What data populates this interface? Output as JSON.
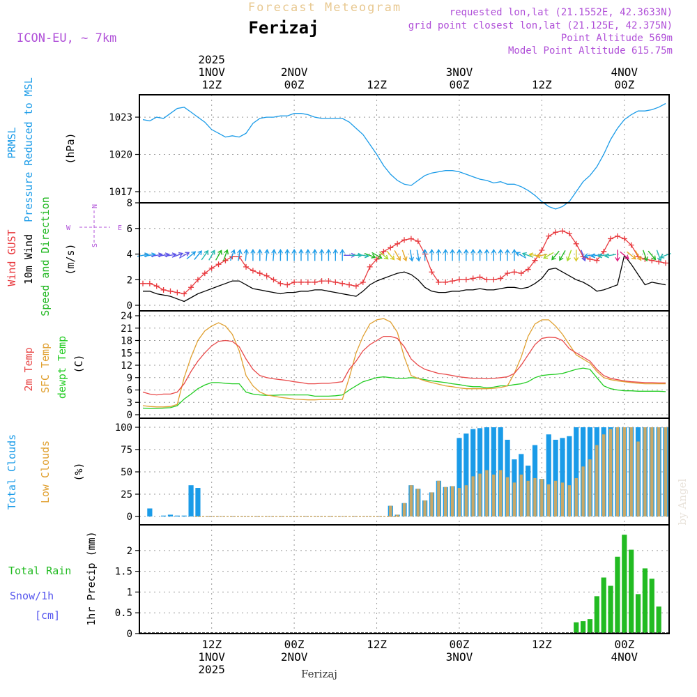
{
  "header": {
    "title": "Forecast Meteogram",
    "location": "Ferizaj",
    "model": "ICON-EU, ~ 7km",
    "requested": "requested lon,lat (21.1552E, 42.3633N)",
    "grid_point": "grid point closest lon,lat (21.125E, 42.375N)",
    "point_altitude": "Point Altitude 569m",
    "model_altitude": "Model Point Altitude 615.75m"
  },
  "footer": {
    "location": "Ferizaj",
    "credit": "by Angel"
  },
  "colors": {
    "pressure": "#1a9be8",
    "gust": "#e8383d",
    "wind": "#000000",
    "speed_dir": "#22b822",
    "temp2m": "#e84848",
    "sfc": "#e0a030",
    "dew": "#22cc22",
    "total_clouds": "#1a9be8",
    "low_clouds": "#c8a868",
    "rain": "#22bb22",
    "snow": "#5555ee",
    "purple": "#b050d8",
    "title": "#e8c890"
  },
  "time_axis": {
    "top": [
      {
        "t": 10,
        "lines": [
          "2025",
          "1NOV",
          "12Z"
        ]
      },
      {
        "t": 22,
        "lines": [
          "2NOV",
          "00Z"
        ]
      },
      {
        "t": 34,
        "lines": [
          "12Z"
        ]
      },
      {
        "t": 46,
        "lines": [
          "3NOV",
          "00Z"
        ]
      },
      {
        "t": 58,
        "lines": [
          "12Z"
        ]
      },
      {
        "t": 70,
        "lines": [
          "4NOV",
          "00Z"
        ]
      }
    ],
    "bottom": [
      {
        "t": 10,
        "lines": [
          "12Z",
          "1NOV",
          "2025"
        ]
      },
      {
        "t": 22,
        "lines": [
          "00Z",
          "2NOV"
        ]
      },
      {
        "t": 34,
        "lines": [
          "12Z"
        ]
      },
      {
        "t": 46,
        "lines": [
          "00Z",
          "3NOV"
        ]
      },
      {
        "t": 58,
        "lines": [
          "12Z"
        ]
      },
      {
        "t": 70,
        "lines": [
          "00Z",
          "4NOV"
        ]
      }
    ]
  },
  "chart_data": [
    {
      "type": "line",
      "title": "PRMSL Pressure Reduced to MSL",
      "ylabel_lines": [
        "PRMSL",
        "Pressure Reduced to MSL"
      ],
      "yunit": "(hPa)",
      "x_hours": [
        0,
        1,
        2,
        3,
        4,
        5,
        6,
        7,
        8,
        9,
        10,
        11,
        12,
        13,
        14,
        15,
        16,
        17,
        18,
        19,
        20,
        21,
        22,
        23,
        24,
        25,
        26,
        27,
        28,
        29,
        30,
        31,
        32,
        33,
        34,
        35,
        36,
        37,
        38,
        39,
        40,
        41,
        42,
        43,
        44,
        45,
        46,
        47,
        48,
        49,
        50,
        51,
        52,
        53,
        54,
        55,
        56,
        57,
        58,
        59,
        60,
        61,
        62,
        63,
        64,
        65,
        66,
        67,
        68,
        69,
        70,
        71,
        72,
        73,
        74,
        75,
        76
      ],
      "y": [
        1022.8,
        1022.7,
        1023.0,
        1022.9,
        1023.3,
        1023.7,
        1023.8,
        1023.4,
        1023.0,
        1022.6,
        1022.0,
        1021.7,
        1021.4,
        1021.5,
        1021.4,
        1021.7,
        1022.5,
        1022.9,
        1023.0,
        1023.0,
        1023.1,
        1023.1,
        1023.3,
        1023.3,
        1023.2,
        1023.0,
        1022.9,
        1022.9,
        1022.9,
        1022.9,
        1022.6,
        1022.1,
        1021.6,
        1020.8,
        1020.0,
        1019.1,
        1018.4,
        1017.9,
        1017.6,
        1017.5,
        1017.9,
        1018.3,
        1018.5,
        1018.6,
        1018.7,
        1018.7,
        1018.6,
        1018.4,
        1018.2,
        1018.0,
        1017.9,
        1017.7,
        1017.8,
        1017.6,
        1017.6,
        1017.4,
        1017.1,
        1016.7,
        1016.2,
        1015.8,
        1015.6,
        1015.8,
        1016.2,
        1017.0,
        1017.8,
        1018.3,
        1019.0,
        1020.0,
        1021.2,
        1022.1,
        1022.8,
        1023.2,
        1023.5,
        1023.5,
        1023.6,
        1023.8,
        1024.1
      ],
      "yticks": [
        1017,
        1020,
        1023
      ],
      "ylim": [
        1016.1,
        1024.8
      ],
      "xlim": [
        0,
        76
      ],
      "grid": true
    },
    {
      "type": "line",
      "title": "Wind GUST, 10m Wind Speed and Direction",
      "ylabel_lines": [
        "Wind GUST",
        "10m Wind",
        "Speed and Direction"
      ],
      "yunit": "(m/s)",
      "compass": [
        "N",
        "W",
        "E",
        "S"
      ],
      "x_hours": [
        0,
        1,
        2,
        3,
        4,
        5,
        6,
        7,
        8,
        9,
        10,
        11,
        12,
        13,
        14,
        15,
        16,
        17,
        18,
        19,
        20,
        21,
        22,
        23,
        24,
        25,
        26,
        27,
        28,
        29,
        30,
        31,
        32,
        33,
        34,
        35,
        36,
        37,
        38,
        39,
        40,
        41,
        42,
        43,
        44,
        45,
        46,
        47,
        48,
        49,
        50,
        51,
        52,
        53,
        54,
        55,
        56,
        57,
        58,
        59,
        60,
        61,
        62,
        63,
        64,
        65,
        66,
        67,
        68,
        69,
        70,
        71,
        72,
        73,
        74,
        75,
        76
      ],
      "gust": [
        1.7,
        1.7,
        1.5,
        1.2,
        1.1,
        1.0,
        0.9,
        1.4,
        2.0,
        2.5,
        2.9,
        3.2,
        3.5,
        3.8,
        3.8,
        3.0,
        2.7,
        2.5,
        2.3,
        2.0,
        1.7,
        1.6,
        1.8,
        1.8,
        1.8,
        1.8,
        1.9,
        1.9,
        1.8,
        1.7,
        1.6,
        1.5,
        1.8,
        3.0,
        3.6,
        4.2,
        4.5,
        4.8,
        5.1,
        5.2,
        5.0,
        4.0,
        2.6,
        1.8,
        1.8,
        1.9,
        2.0,
        2.0,
        2.1,
        2.2,
        2.0,
        2.0,
        2.1,
        2.5,
        2.6,
        2.5,
        2.8,
        3.5,
        4.3,
        5.4,
        5.7,
        5.8,
        5.6,
        4.8,
        3.8,
        3.6,
        3.5,
        4.2,
        5.2,
        5.4,
        5.2,
        4.7,
        3.8,
        3.6,
        3.5,
        3.4,
        3.3
      ],
      "wind": [
        1.1,
        1.1,
        0.9,
        0.8,
        0.7,
        0.5,
        0.3,
        0.6,
        0.9,
        1.1,
        1.3,
        1.5,
        1.7,
        1.9,
        1.9,
        1.6,
        1.3,
        1.2,
        1.1,
        1.0,
        0.9,
        1.0,
        1.0,
        1.1,
        1.1,
        1.2,
        1.2,
        1.1,
        1.0,
        0.9,
        0.8,
        0.7,
        1.1,
        1.6,
        1.9,
        2.1,
        2.3,
        2.5,
        2.6,
        2.4,
        2.0,
        1.4,
        1.1,
        1.0,
        1.0,
        1.1,
        1.1,
        1.2,
        1.2,
        1.3,
        1.2,
        1.2,
        1.3,
        1.4,
        1.4,
        1.3,
        1.4,
        1.7,
        2.1,
        2.8,
        2.9,
        2.6,
        2.3,
        2.0,
        1.8,
        1.5,
        1.1,
        1.2,
        1.4,
        1.6,
        3.9,
        3.2,
        2.4,
        1.6,
        1.8,
        1.7,
        1.6
      ],
      "arrow_dir_deg": [
        80,
        80,
        80,
        80,
        80,
        70,
        60,
        50,
        40,
        35,
        30,
        30,
        20,
        20,
        10,
        5,
        0,
        0,
        5,
        5,
        0,
        0,
        0,
        0,
        0,
        0,
        0,
        0,
        0,
        0,
        90,
        90,
        100,
        110,
        120,
        130,
        140,
        150,
        160,
        170,
        170,
        0,
        0,
        0,
        0,
        0,
        0,
        0,
        0,
        0,
        0,
        0,
        0,
        0,
        0,
        300,
        290,
        280,
        260,
        240,
        220,
        210,
        200,
        180,
        160,
        260,
        260,
        260,
        260,
        180,
        130,
        130,
        150,
        160,
        140,
        160,
        250
      ],
      "arrow_colors": [
        "#1a9be8",
        "#1a9be8",
        "#5a52e8",
        "#5a52e8",
        "#5a52e8",
        "#5a52e8",
        "#5a52e8",
        "#1a9be8",
        "#1a9be8",
        "#22b8b0",
        "#22b8b0",
        "#22b822",
        "#22b822",
        "#1a9be8",
        "#1a9be8",
        "#1a9be8",
        "#1a9be8",
        "#1a9be8",
        "#1a9be8",
        "#1a9be8",
        "#1a9be8",
        "#1a9be8",
        "#1a9be8",
        "#1a9be8",
        "#1a9be8",
        "#1a9be8",
        "#1a9be8",
        "#1a9be8",
        "#1a9be8",
        "#1a9be8",
        "#5a52e8",
        "#22b8b0",
        "#22b8b0",
        "#22b822",
        "#22b822",
        "#a8d828",
        "#d8c828",
        "#e8a828",
        "#e8a828",
        "#1a9be8",
        "#1a9be8",
        "#1a9be8",
        "#1a9be8",
        "#1a9be8",
        "#1a9be8",
        "#1a9be8",
        "#1a9be8",
        "#1a9be8",
        "#1a9be8",
        "#1a9be8",
        "#1a9be8",
        "#1a9be8",
        "#1a9be8",
        "#1a9be8",
        "#1a9be8",
        "#1a9be8",
        "#22b8b0",
        "#d8c828",
        "#e8a828",
        "#a8d828",
        "#22b822",
        "#22b822",
        "#a8d828",
        "#d8c828",
        "#5a52e8",
        "#1a9be8",
        "#1a9be8",
        "#22b8b0",
        "#22b8b0",
        "#e02080",
        "#e02080",
        "#e8a828",
        "#e8a828",
        "#22b822",
        "#22b822",
        "#22b8b0",
        "#22b8b0"
      ],
      "yticks": [
        0,
        2,
        4,
        6,
        8
      ],
      "ylim": [
        0,
        8
      ],
      "xlim": [
        0,
        76
      ],
      "grid": true
    },
    {
      "type": "line",
      "title": "2m Temp, SFC Temp, dewpt Temp",
      "ylabel_lines": [
        "2m Temp",
        "SFC Temp",
        "dewpt Temp"
      ],
      "yunit": "(C)",
      "x_hours": [
        0,
        1,
        2,
        3,
        4,
        5,
        6,
        7,
        8,
        9,
        10,
        11,
        12,
        13,
        14,
        15,
        16,
        17,
        18,
        19,
        20,
        21,
        22,
        23,
        24,
        25,
        26,
        27,
        28,
        29,
        30,
        31,
        32,
        33,
        34,
        35,
        36,
        37,
        38,
        39,
        40,
        41,
        42,
        43,
        44,
        45,
        46,
        47,
        48,
        49,
        50,
        51,
        52,
        53,
        54,
        55,
        56,
        57,
        58,
        59,
        60,
        61,
        62,
        63,
        64,
        65,
        66,
        67,
        68,
        69,
        70,
        71,
        72,
        73,
        74,
        75,
        76
      ],
      "temp2m": [
        5.5,
        5.0,
        4.8,
        5.0,
        5.0,
        5.5,
        7.5,
        10.5,
        13.0,
        15.0,
        16.7,
        17.8,
        18.0,
        17.8,
        16.5,
        13.5,
        11.0,
        9.5,
        9.0,
        8.7,
        8.5,
        8.3,
        8.0,
        7.8,
        7.5,
        7.5,
        7.6,
        7.6,
        7.8,
        8.0,
        11.0,
        13.0,
        15.5,
        17.0,
        18.0,
        19.0,
        19.0,
        18.5,
        16.5,
        13.5,
        12.0,
        11.0,
        10.5,
        10.0,
        9.8,
        9.5,
        9.2,
        9.0,
        8.8,
        8.8,
        8.7,
        8.8,
        9.0,
        9.2,
        10.0,
        12.0,
        14.5,
        17.0,
        18.5,
        18.8,
        18.7,
        18.0,
        16.0,
        15.0,
        14.0,
        13.0,
        11.0,
        9.5,
        8.8,
        8.5,
        8.2,
        8.0,
        7.9,
        7.8,
        7.8,
        7.7,
        7.7
      ],
      "sfc": [
        2.2,
        2.0,
        1.9,
        1.9,
        2.0,
        2.5,
        9.0,
        14.0,
        18.0,
        20.3,
        21.5,
        22.3,
        21.5,
        19.5,
        15.5,
        9.5,
        7.0,
        5.5,
        4.8,
        4.5,
        4.2,
        4.0,
        3.8,
        3.7,
        3.6,
        3.6,
        3.7,
        3.7,
        3.7,
        3.7,
        9.0,
        15.0,
        19.0,
        22.0,
        23.0,
        23.3,
        22.5,
        20.0,
        14.0,
        9.5,
        8.8,
        8.2,
        7.8,
        7.4,
        7.0,
        6.8,
        6.5,
        6.3,
        6.3,
        6.3,
        6.3,
        6.4,
        6.6,
        7.0,
        10.0,
        14.0,
        19.0,
        22.0,
        23.0,
        23.0,
        21.5,
        19.5,
        17.0,
        14.5,
        13.5,
        12.5,
        10.5,
        9.0,
        8.5,
        8.2,
        8.0,
        7.8,
        7.6,
        7.5,
        7.5,
        7.5,
        7.5
      ],
      "dew": [
        1.6,
        1.5,
        1.5,
        1.6,
        1.7,
        2.2,
        3.8,
        5.0,
        6.3,
        7.2,
        7.8,
        7.8,
        7.6,
        7.5,
        7.5,
        5.5,
        5.0,
        4.8,
        4.7,
        4.7,
        4.8,
        4.8,
        4.8,
        4.8,
        4.8,
        4.5,
        4.5,
        4.5,
        4.6,
        4.8,
        6.0,
        7.0,
        8.0,
        8.5,
        9.0,
        9.2,
        9.0,
        8.8,
        8.8,
        9.0,
        8.8,
        8.5,
        8.2,
        8.0,
        7.8,
        7.5,
        7.3,
        7.0,
        6.8,
        6.8,
        6.5,
        6.7,
        7.0,
        7.0,
        7.3,
        7.5,
        8.0,
        9.0,
        9.5,
        9.7,
        9.8,
        10.0,
        10.5,
        11.0,
        11.3,
        11.0,
        9.0,
        7.0,
        6.3,
        6.0,
        5.8,
        5.8,
        5.7,
        5.7,
        5.7,
        5.7,
        5.6
      ],
      "yticks": [
        0,
        3,
        6,
        9,
        12,
        15,
        18,
        21,
        24
      ],
      "ylim": [
        0,
        24
      ],
      "xlim": [
        0,
        76
      ],
      "grid": true
    },
    {
      "type": "bar",
      "title": "Total Clouds, Low Clouds",
      "ylabel_lines": [
        "Total Clouds",
        "Low Clouds"
      ],
      "yunit": "(%)",
      "x_hours": [
        0,
        1,
        2,
        3,
        4,
        5,
        6,
        7,
        8,
        9,
        10,
        11,
        12,
        13,
        14,
        15,
        16,
        17,
        18,
        19,
        20,
        21,
        22,
        23,
        24,
        25,
        26,
        27,
        28,
        29,
        30,
        31,
        32,
        33,
        34,
        35,
        36,
        37,
        38,
        39,
        40,
        41,
        42,
        43,
        44,
        45,
        46,
        47,
        48,
        49,
        50,
        51,
        52,
        53,
        54,
        55,
        56,
        57,
        58,
        59,
        60,
        61,
        62,
        63,
        64,
        65,
        66,
        67,
        68,
        69,
        70,
        71,
        72,
        73,
        74,
        75,
        76
      ],
      "total": [
        0,
        9,
        0,
        1,
        2,
        1,
        1,
        35,
        32,
        0,
        0,
        0,
        0,
        0,
        0,
        0,
        0,
        0,
        0,
        0,
        0,
        0,
        0,
        0,
        0,
        0,
        0,
        0,
        0,
        0,
        0,
        0,
        0,
        0,
        0,
        0,
        12,
        2,
        15,
        35,
        31,
        18,
        27,
        40,
        33,
        34,
        88,
        93,
        98,
        99,
        100,
        100,
        100,
        86,
        64,
        70,
        57,
        80,
        42,
        92,
        86,
        88,
        90,
        100,
        100,
        100,
        100,
        100,
        100,
        100,
        100,
        100,
        100,
        100,
        100,
        100,
        100
      ],
      "low": [
        0,
        0,
        0,
        0,
        0,
        0,
        0,
        0,
        0,
        0,
        0,
        0,
        0,
        0,
        0,
        0,
        0,
        0,
        0,
        0,
        0,
        0,
        0,
        0,
        0,
        0,
        0,
        0,
        0,
        0,
        0,
        0,
        0,
        0,
        0,
        0,
        12,
        2,
        15,
        35,
        31,
        18,
        27,
        40,
        33,
        34,
        32,
        35,
        45,
        48,
        52,
        47,
        52,
        44,
        38,
        47,
        40,
        43,
        42,
        36,
        40,
        38,
        35,
        43,
        56,
        64,
        80,
        92,
        98,
        100,
        100,
        100,
        84,
        100,
        100,
        100,
        100
      ],
      "yticks": [
        0,
        25,
        50,
        75,
        100
      ],
      "ylim": [
        0,
        100
      ],
      "xlim": [
        0,
        76
      ],
      "grid": true
    },
    {
      "type": "bar",
      "title": "Total Rain, Snow/1h",
      "ylabel_lines": [
        "Total  Rain",
        "Snow/1h",
        "[cm]"
      ],
      "yunit": "1hr Precip (mm)",
      "x_hours": [
        63,
        64,
        65,
        66,
        67,
        68,
        69,
        70,
        71,
        72,
        73,
        74,
        75
      ],
      "rain": [
        0.27,
        0.3,
        0.35,
        0.9,
        1.35,
        1.15,
        1.85,
        2.38,
        2.02,
        0.95,
        1.57,
        1.32,
        0.65
      ],
      "snow": [
        0,
        0,
        0,
        0,
        0,
        0,
        0,
        0,
        0,
        0,
        0,
        0,
        0
      ],
      "yticks": [
        0,
        0.5,
        1,
        1.5,
        2
      ],
      "ylim": [
        0,
        2.45
      ],
      "xlim": [
        0,
        76
      ],
      "grid": true
    }
  ]
}
